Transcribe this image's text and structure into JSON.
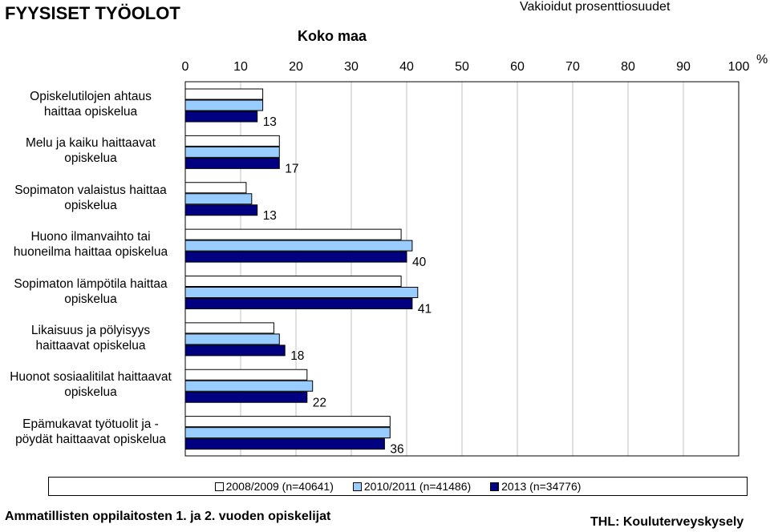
{
  "header": {
    "title": "FYYSISET TYÖOLOT",
    "subtitle": "Vakioidut prosenttiosuudet",
    "chart_title": "Koko maa",
    "unit": "%"
  },
  "footer": {
    "left": "Ammatillisten oppilaitosten 1. ja 2. vuoden opiskelijat",
    "right": "THL: Kouluterveyskysely"
  },
  "chart_data": {
    "type": "bar",
    "orientation": "horizontal",
    "title": "Koko maa",
    "subtitle": "Vakioidut prosenttiosuudet",
    "xlabel": "%",
    "xlim": [
      0,
      100
    ],
    "xticks": [
      0,
      10,
      20,
      30,
      40,
      50,
      60,
      70,
      80,
      90,
      100
    ],
    "grid": true,
    "legend_position": "bottom",
    "categories": [
      [
        "Opiskelutilojen ahtaus",
        "haittaa opiskelua"
      ],
      [
        "Melu ja kaiku haittaavat",
        "opiskelua"
      ],
      [
        "Sopimaton valaistus haittaa",
        "opiskelua"
      ],
      [
        "Huono ilmanvaihto tai",
        "huoneilma haittaa opiskelua"
      ],
      [
        "Sopimaton lämpötila haittaa",
        "opiskelua"
      ],
      [
        "Likaisuus ja pölyisyys",
        "haittaavat opiskelua"
      ],
      [
        "Huonot sosiaalitilat haittaavat",
        "opiskelua"
      ],
      [
        "Epämukavat työtuolit ja -",
        "pöydät haittaavat opiskelua"
      ]
    ],
    "series": [
      {
        "name": "2008/2009 (n=40641)",
        "color": "#ffffff",
        "values": [
          14,
          17,
          11,
          39,
          39,
          16,
          22,
          37
        ]
      },
      {
        "name": "2010/2011 (n=41486)",
        "color": "#99ccff",
        "values": [
          14,
          17,
          12,
          41,
          42,
          17,
          23,
          37
        ]
      },
      {
        "name": "2013 (n=34776)",
        "color": "#000080",
        "values": [
          13,
          17,
          13,
          40,
          41,
          18,
          22,
          36
        ]
      }
    ],
    "data_labels": [
      "13",
      "17",
      "13",
      "40",
      "41",
      "18",
      "22",
      "36"
    ]
  }
}
